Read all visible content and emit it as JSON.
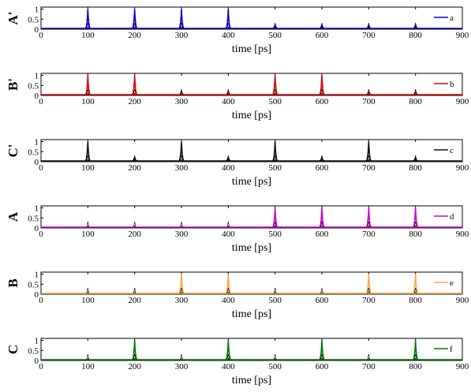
{
  "chart_data": [
    {
      "type": "line",
      "ylabel": "A'",
      "xlabel": "time [ps]",
      "xlim": [
        0,
        900
      ],
      "ylim": [
        0,
        1.1
      ],
      "xticks": [
        0,
        100,
        200,
        300,
        400,
        500,
        600,
        700,
        800,
        900
      ],
      "yticks": [
        "0",
        "0.5",
        "1"
      ],
      "legend": {
        "position": "right",
        "label": "a"
      },
      "series": [
        {
          "name": "a",
          "color": "#0000dd",
          "peaks": [
            [
              100,
              1.0
            ],
            [
              200,
              1.0
            ],
            [
              300,
              1.0
            ],
            [
              400,
              1.0
            ],
            [
              500,
              0.22
            ],
            [
              600,
              0.22
            ],
            [
              700,
              0.22
            ],
            [
              800,
              0.22
            ]
          ]
        }
      ]
    },
    {
      "type": "line",
      "ylabel": "B'",
      "xlabel": "time [ps]",
      "xlim": [
        0,
        900
      ],
      "ylim": [
        0,
        1.1
      ],
      "xticks": [
        0,
        100,
        200,
        300,
        400,
        500,
        600,
        700,
        800,
        900
      ],
      "yticks": [
        "0",
        "0.5",
        "1"
      ],
      "legend": {
        "position": "right",
        "label": "b"
      },
      "series": [
        {
          "name": "b",
          "color": "#dd0000",
          "peaks": [
            [
              100,
              1.0
            ],
            [
              200,
              1.0
            ],
            [
              300,
              0.22
            ],
            [
              400,
              0.22
            ],
            [
              500,
              1.0
            ],
            [
              600,
              1.0
            ],
            [
              700,
              0.22
            ],
            [
              800,
              0.22
            ]
          ]
        }
      ]
    },
    {
      "type": "line",
      "ylabel": "C'",
      "xlabel": "time [ps]",
      "xlim": [
        0,
        900
      ],
      "ylim": [
        0,
        1.1
      ],
      "xticks": [
        0,
        100,
        200,
        300,
        400,
        500,
        600,
        700,
        800,
        900
      ],
      "yticks": [
        "0",
        "0.5",
        "1"
      ],
      "legend": {
        "position": "right",
        "label": "c"
      },
      "series": [
        {
          "name": "c",
          "color": "#111111",
          "peaks": [
            [
              100,
              1.0
            ],
            [
              200,
              0.22
            ],
            [
              300,
              1.0
            ],
            [
              400,
              0.22
            ],
            [
              500,
              1.0
            ],
            [
              600,
              0.22
            ],
            [
              700,
              1.0
            ],
            [
              800,
              0.22
            ]
          ]
        }
      ]
    },
    {
      "type": "line",
      "ylabel": "A",
      "xlabel": "time [ps]",
      "xlim": [
        0,
        900
      ],
      "ylim": [
        0,
        1.1
      ],
      "xticks": [
        0,
        100,
        200,
        300,
        400,
        500,
        600,
        700,
        800,
        900
      ],
      "yticks": [
        "0",
        "0.5",
        "1"
      ],
      "legend": {
        "position": "right",
        "label": "d"
      },
      "series": [
        {
          "name": "d",
          "color": "#cc00cc",
          "peaks": [
            [
              100,
              0.0
            ],
            [
              200,
              0.0
            ],
            [
              300,
              0.0
            ],
            [
              400,
              0.0
            ],
            [
              500,
              1.0
            ],
            [
              600,
              1.0
            ],
            [
              700,
              1.0
            ],
            [
              800,
              1.0
            ]
          ]
        }
      ]
    },
    {
      "type": "line",
      "ylabel": "B",
      "xlabel": "time [ps]",
      "xlim": [
        0,
        900
      ],
      "ylim": [
        0,
        1.1
      ],
      "xticks": [
        0,
        100,
        200,
        300,
        400,
        500,
        600,
        700,
        800,
        900
      ],
      "yticks": [
        "0",
        "0.5",
        "1"
      ],
      "legend": {
        "position": "right",
        "label": "e"
      },
      "series": [
        {
          "name": "e",
          "color": "#ffa64d",
          "peaks": [
            [
              100,
              0.0
            ],
            [
              200,
              0.0
            ],
            [
              300,
              1.0
            ],
            [
              400,
              1.0
            ],
            [
              500,
              0.0
            ],
            [
              600,
              0.0
            ],
            [
              700,
              1.0
            ],
            [
              800,
              1.0
            ]
          ]
        }
      ]
    },
    {
      "type": "line",
      "ylabel": "C",
      "xlabel": "time [ps]",
      "xlim": [
        0,
        900
      ],
      "ylim": [
        0,
        1.1
      ],
      "xticks": [
        0,
        100,
        200,
        300,
        400,
        500,
        600,
        700,
        800,
        900
      ],
      "yticks": [
        "0",
        "0.5",
        "1"
      ],
      "legend": {
        "position": "right",
        "label": "f"
      },
      "series": [
        {
          "name": "f",
          "color": "#007700",
          "peaks": [
            [
              100,
              0.0
            ],
            [
              200,
              1.0
            ],
            [
              300,
              0.0
            ],
            [
              400,
              1.0
            ],
            [
              500,
              0.0
            ],
            [
              600,
              1.0
            ],
            [
              700,
              0.0
            ],
            [
              800,
              1.0
            ]
          ]
        }
      ]
    }
  ]
}
